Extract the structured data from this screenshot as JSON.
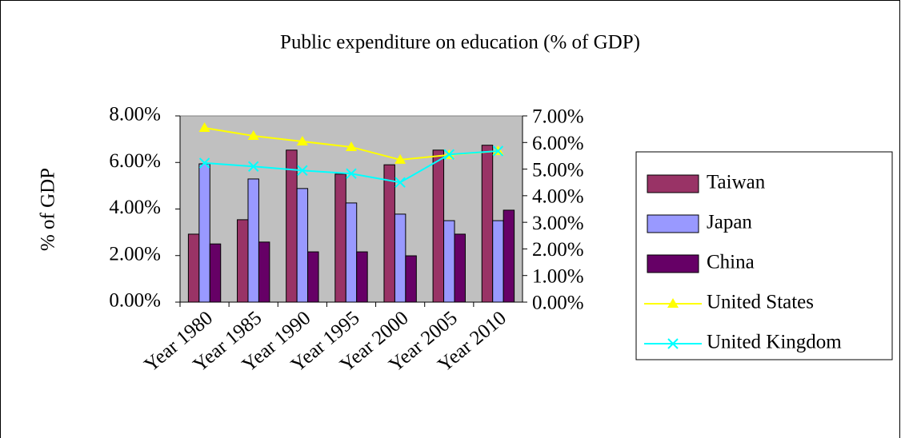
{
  "chart_data": {
    "type": "bar_line",
    "title": "Public expenditure on education (% of GDP)",
    "y_label": "% of GDP",
    "categories": [
      "Year 1980",
      "Year 1985",
      "Year 1990",
      "Year 1995",
      "Year 2000",
      "Year 2005",
      "Year 2010"
    ],
    "series": [
      {
        "name": "Taiwan",
        "type": "bar",
        "color": "#993366",
        "values": [
          2.92,
          3.54,
          6.53,
          5.5,
          5.9,
          6.53,
          6.74
        ]
      },
      {
        "name": "Japan",
        "type": "bar",
        "color": "#9999ff",
        "values": [
          5.94,
          5.29,
          4.88,
          4.26,
          3.78,
          3.5,
          3.5
        ]
      },
      {
        "name": "China",
        "type": "bar",
        "color": "#660066",
        "values": [
          2.5,
          2.58,
          2.16,
          2.16,
          1.99,
          2.92,
          3.95
        ]
      },
      {
        "name": "United States",
        "type": "line",
        "marker": "triangle",
        "axis": "y2",
        "color": "#ffff00",
        "values": [
          6.55,
          6.25,
          6.04,
          5.83,
          5.35,
          5.53,
          5.68
        ]
      },
      {
        "name": "United Kingdom",
        "type": "line",
        "marker": "x",
        "axis": "y2",
        "color": "#00ffff",
        "values": [
          5.23,
          5.1,
          4.95,
          4.83,
          4.5,
          5.55,
          5.68
        ]
      }
    ],
    "ylim": [
      0,
      8
    ],
    "yticks": [
      {
        "value": 0,
        "label": "0.00%"
      },
      {
        "value": 2,
        "label": "2.00%"
      },
      {
        "value": 4,
        "label": "4.00%"
      },
      {
        "value": 6,
        "label": "6.00%"
      },
      {
        "value": 8,
        "label": "8.00%"
      }
    ],
    "y2lim": [
      0,
      7
    ],
    "y2ticks": [
      {
        "value": 0,
        "label": "0.00%"
      },
      {
        "value": 1,
        "label": "1.00%"
      },
      {
        "value": 2,
        "label": "2.00%"
      },
      {
        "value": 3,
        "label": "3.00%"
      },
      {
        "value": 4,
        "label": "4.00%"
      },
      {
        "value": 5,
        "label": "5.00%"
      },
      {
        "value": 6,
        "label": "6.00%"
      },
      {
        "value": 7,
        "label": "7.00%"
      }
    ],
    "plot_background": "#c0c0c0",
    "legend": "right"
  }
}
